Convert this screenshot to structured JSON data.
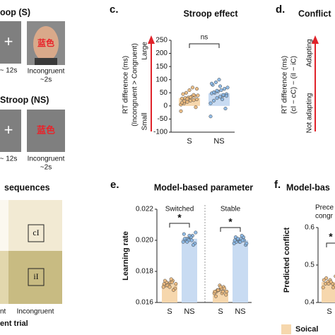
{
  "figure": {
    "panel_a": {
      "title_s": "oop (S)",
      "title_ns": "Stroop (NS)",
      "fixation": "+",
      "word": "蓝色",
      "iti": "~ 12s",
      "condition": "Incongruent",
      "duration": "~2s"
    },
    "panel_b": {
      "title": "sequences",
      "cell_top": "cI",
      "cell_bottom": "iI",
      "x_left": "nt",
      "x_right": "Incongruent",
      "xlabel": "ent trial"
    },
    "panel_c": {
      "label": "c.",
      "title": "Stroop effect",
      "ylabel": [
        "RT difference (ms)",
        "(Incongruent > Congruent)"
      ],
      "arrow_top": "Large",
      "arrow_bottom": "Small",
      "ylim": [
        -100,
        250
      ],
      "yticks": [
        -100,
        -50,
        0,
        50,
        100,
        150,
        200,
        250
      ],
      "categories": [
        "S",
        "NS"
      ],
      "colors": [
        "#f6d7ad",
        "#c8dbf2"
      ],
      "dot_colors": [
        "#eab77a",
        "#86b5e3"
      ],
      "bar_values": [
        30,
        48
      ],
      "points": [
        [
          5,
          10,
          15,
          20,
          22,
          25,
          28,
          30,
          32,
          35,
          38,
          40,
          45,
          50,
          60,
          70,
          -5,
          -20,
          18,
          27,
          33,
          42,
          65,
          12
        ],
        [
          10,
          20,
          30,
          35,
          40,
          45,
          48,
          50,
          55,
          60,
          65,
          70,
          80,
          90,
          100,
          25,
          -10,
          -40,
          52,
          58,
          75,
          42,
          38,
          85
        ]
      ],
      "annotation": "ns"
    },
    "panel_d": {
      "label": "d.",
      "title": "Conflict",
      "ylabel": [
        "RT difference (ms)",
        "(cI − cC) − (iI − iC)"
      ],
      "arrow_top": "Adapting",
      "arrow_bottom": "Not adapting"
    },
    "panel_e": {
      "label": "e.",
      "title": "Model-based parameter",
      "ylabel": "Learning rate",
      "groups": [
        "Switched",
        "Stable"
      ],
      "ylim": [
        0.016,
        0.022
      ],
      "yticks": [
        {
          "value": 0.016,
          "label": "0.016"
        },
        {
          "value": 0.018,
          "label": "0.018"
        },
        {
          "value": 0.02,
          "label": "0.020"
        },
        {
          "value": 0.022,
          "label": "0.022"
        }
      ],
      "categories": [
        "S",
        "NS",
        "S",
        "NS"
      ],
      "colors": [
        "#f6d7ad",
        "#c8dbf2",
        "#f6d7ad",
        "#c8dbf2"
      ],
      "dot_colors": [
        "#eab77a",
        "#86b5e3",
        "#eab77a",
        "#86b5e3"
      ],
      "bar_values": [
        0.0172,
        0.0201,
        0.0168,
        0.02
      ],
      "points": [
        [
          0.017,
          0.0171,
          0.0172,
          0.0173,
          0.0174,
          0.0169,
          0.0172,
          0.0173,
          0.0171,
          0.0175,
          0.0168,
          0.0172,
          0.0174,
          0.0171,
          0.017,
          0.0173
        ],
        [
          0.0199,
          0.02,
          0.0201,
          0.0202,
          0.0203,
          0.0198,
          0.0204,
          0.0201,
          0.02,
          0.0202,
          0.0197,
          0.0205,
          0.0201,
          0.0199,
          0.0203,
          0.02
        ],
        [
          0.0166,
          0.0167,
          0.0168,
          0.0169,
          0.017,
          0.0165,
          0.0167,
          0.0168,
          0.0171,
          0.0166,
          0.0169,
          0.0167,
          0.0164,
          0.0168,
          0.017,
          0.0167
        ],
        [
          0.0198,
          0.0199,
          0.02,
          0.0201,
          0.0202,
          0.0197,
          0.02,
          0.0201,
          0.0199,
          0.0203,
          0.02,
          0.0198,
          0.0202,
          0.0201,
          0.0199,
          0.02
        ]
      ],
      "annotations": [
        "*",
        "*"
      ]
    },
    "panel_f": {
      "label": "f.",
      "title": "Model-bas",
      "ylabel": "Predicted conflict",
      "note": [
        "Prece",
        "congr"
      ],
      "ylim": [
        0.4,
        0.6
      ],
      "yticks": [
        0.4,
        0.5,
        0.6
      ],
      "categories": [
        "S"
      ],
      "colors": [
        "#f6d7ad"
      ],
      "dot_colors": [
        "#eab77a"
      ],
      "bar_values": [
        0.455
      ],
      "points": [
        [
          0.44,
          0.45,
          0.455,
          0.46,
          0.45,
          0.445,
          0.46,
          0.465,
          0.45,
          0.455,
          0.44,
          0.47
        ]
      ],
      "annotation": "*",
      "legend": "Soical"
    }
  }
}
